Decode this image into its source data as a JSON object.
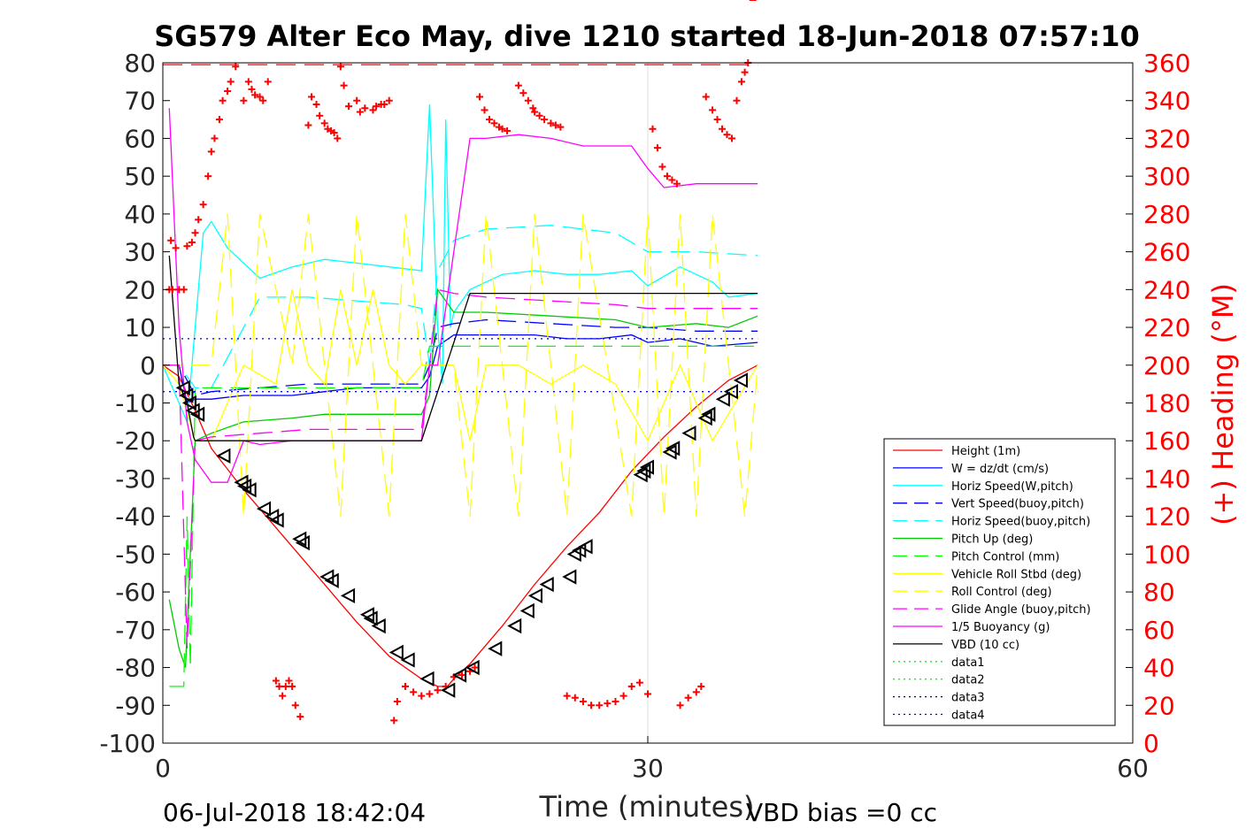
{
  "chart_data": {
    "type": "line",
    "title": "SG579 Alter Eco May, dive 1210 started 18-Jun-2018 07:57:10",
    "xlabel": "Time (minutes)",
    "ylabel": "",
    "y2label": "(+) Heading (°M)",
    "xlim": [
      0,
      60
    ],
    "ylim": [
      -100,
      80
    ],
    "y2lim": [
      0,
      360
    ],
    "xticks": [
      "0",
      "30",
      "60"
    ],
    "yticks": [
      "80",
      "70",
      "60",
      "50",
      "40",
      "30",
      "20",
      "10",
      "0",
      "-10",
      "-20",
      "-30",
      "-40",
      "-50",
      "-60",
      "-70",
      "-80",
      "-90",
      "-100"
    ],
    "y2ticks": [
      "360",
      "340",
      "320",
      "300",
      "280",
      "260",
      "240",
      "220",
      "200",
      "180",
      "160",
      "140",
      "120",
      "100",
      "80",
      "60",
      "40",
      "20",
      "0"
    ],
    "grid": "x-only",
    "legend_position": "lower-right",
    "colors": {
      "height": "#ff0000",
      "w": "#0000ff",
      "horiz_speed": "#00ffff",
      "pitch_up": "#00cc00",
      "roll": "#ffff00",
      "glide": "#ff00ff",
      "buoyancy": "#ff00ff",
      "vbd": "#000000",
      "heading": "#ff0000"
    },
    "series": [
      {
        "name": "Height (1m)",
        "style": "solid",
        "color": "#ff0000",
        "x": [
          0,
          1,
          2,
          3,
          5,
          8,
          10,
          12,
          14,
          16,
          16.5,
          17,
          17.6,
          18,
          19,
          21,
          23,
          25,
          27,
          29,
          31,
          33,
          35,
          36.8
        ],
        "y": [
          0,
          -3,
          -12,
          -22,
          -33,
          -48,
          -58,
          -68,
          -77,
          -83,
          -84,
          -85,
          -85,
          -83,
          -79,
          -69,
          -58,
          -48,
          -39,
          -28,
          -19,
          -11,
          -4,
          0
        ]
      },
      {
        "name": "W = dz/dt (cm/s)",
        "style": "solid",
        "color": "#0000ff",
        "x": [
          0,
          1,
          1.5,
          2,
          3,
          5,
          8,
          10,
          12,
          14,
          16,
          16.5,
          17,
          18,
          19,
          21,
          23,
          25,
          27,
          29,
          30,
          32,
          34,
          36.8
        ],
        "y": [
          0,
          0,
          -10,
          -9,
          -9,
          -8,
          -8,
          -7,
          -6,
          -6,
          -6,
          -3,
          5,
          8,
          8,
          8,
          8,
          7,
          7,
          8,
          6,
          7,
          5,
          6
        ]
      },
      {
        "name": "Horiz Speed(W,pitch)",
        "style": "solid",
        "color": "#00ffff",
        "x": [
          0,
          1,
          1.5,
          2,
          2.5,
          3,
          4,
          6,
          8,
          10,
          12,
          14,
          16,
          16.5,
          17,
          17.3,
          17.5,
          17.8,
          18,
          19,
          21,
          23,
          25,
          27,
          29,
          30,
          32,
          34,
          35,
          36.8
        ],
        "y": [
          0,
          -10,
          -15,
          10,
          35,
          38,
          31,
          23,
          26,
          28,
          27,
          26,
          25,
          69,
          10,
          -5,
          65,
          10,
          14,
          20,
          24,
          25,
          24,
          24,
          25,
          21,
          26,
          22,
          18,
          19
        ]
      },
      {
        "name": "Vert Speed(buoy,pitch)",
        "style": "dashed",
        "color": "#0000ff",
        "x": [
          0,
          1,
          2,
          3,
          6,
          9,
          12,
          15,
          16,
          16.5,
          17,
          18,
          20,
          24,
          28,
          30,
          33,
          36.8
        ],
        "y": [
          0,
          0,
          -8,
          -7,
          -6,
          -5,
          -5,
          -5,
          -5,
          0,
          10,
          11,
          12,
          11,
          10,
          10,
          9,
          9
        ]
      },
      {
        "name": "Horiz Speed(buoy,pitch)",
        "style": "dashed",
        "color": "#00ffff",
        "x": [
          0,
          1,
          2,
          3,
          6,
          9,
          12,
          15,
          16,
          16.5,
          17,
          18,
          20,
          24,
          28,
          30,
          33,
          36.8
        ],
        "y": [
          0,
          0,
          -6,
          -6,
          18,
          18,
          17,
          16,
          15,
          0,
          25,
          33,
          36,
          37,
          35,
          30,
          30,
          29
        ]
      },
      {
        "name": "Pitch Up (deg)",
        "style": "solid",
        "color": "#00cc00",
        "x": [
          0.4,
          1,
          1.4,
          2,
          3,
          5,
          8,
          10,
          12,
          14,
          16,
          16.5,
          17,
          18,
          20,
          24,
          28,
          30,
          33,
          35,
          36.8
        ],
        "y": [
          -62,
          -75,
          -80,
          -20,
          -18,
          -15,
          -14,
          -13,
          -13,
          -13,
          -13,
          -8,
          20,
          14,
          14,
          13,
          12,
          10,
          11,
          10,
          13
        ]
      },
      {
        "name": "Pitch Control (mm)",
        "style": "dashed",
        "color": "#00ff00",
        "x": [
          0.4,
          1.3,
          1.5,
          1.7,
          2,
          4,
          8,
          12,
          16,
          16.5,
          17,
          36.8
        ],
        "y": [
          -85,
          -85,
          -40,
          -80,
          -6,
          -6,
          -6,
          -6,
          -6,
          5,
          5,
          5
        ]
      },
      {
        "name": "Vehicle Roll Stbd (deg)",
        "style": "solid",
        "color": "#ffff00",
        "x": [
          0,
          1,
          2,
          3,
          5,
          7,
          8,
          9,
          10,
          11,
          12,
          13,
          14,
          15,
          16,
          17,
          18,
          19,
          20,
          22,
          24,
          26,
          28,
          30,
          32,
          34,
          36.8
        ],
        "y": [
          0,
          -5,
          -20,
          -20,
          0,
          -5,
          20,
          0,
          -5,
          20,
          0,
          20,
          0,
          -5,
          0,
          0,
          0,
          -20,
          0,
          0,
          -5,
          0,
          -5,
          -20,
          0,
          -20,
          0
        ]
      },
      {
        "name": "Roll Control (deg)",
        "style": "dashed",
        "color": "#ffff00",
        "x": [
          0,
          3,
          4,
          5,
          6,
          8,
          9,
          11,
          12,
          14,
          15,
          16,
          18,
          19,
          20,
          22,
          23,
          25,
          26,
          29,
          30,
          31,
          32,
          33,
          34,
          36,
          36.8
        ],
        "y": [
          0,
          0,
          40,
          -40,
          40,
          0,
          40,
          -40,
          40,
          -40,
          40,
          0,
          0,
          -40,
          40,
          -40,
          40,
          -40,
          40,
          -40,
          40,
          -40,
          40,
          -40,
          40,
          -40,
          0
        ]
      },
      {
        "name": "Glide Angle (buoy,pitch)",
        "style": "dashed",
        "color": "#ff00ff",
        "x": [
          0,
          1,
          1.5,
          2,
          3,
          6,
          9,
          12,
          16,
          16.5,
          17,
          18,
          20,
          24,
          28,
          30,
          33,
          36.8
        ],
        "y": [
          0,
          0,
          -75,
          -20,
          -19,
          -18,
          -17,
          -17,
          -17,
          0,
          20,
          19,
          18,
          17,
          16,
          15,
          15,
          15
        ]
      },
      {
        "name": "1/5 Buoyancy (g)",
        "style": "solid",
        "color": "#ff00ff",
        "x": [
          0.4,
          1,
          1.5,
          2,
          3,
          4,
          5,
          6,
          8,
          10,
          12,
          14,
          15,
          16,
          16.5,
          17,
          19,
          20,
          22,
          24,
          26,
          28,
          29,
          30,
          31,
          33,
          35,
          36.8
        ],
        "y": [
          68,
          10,
          -15,
          -25,
          -31,
          -31,
          -20,
          -21,
          -20,
          -20,
          -20,
          -20,
          -20,
          -20,
          0,
          0,
          60,
          60,
          61,
          60,
          58,
          58,
          58,
          52,
          47,
          48,
          48,
          48
        ]
      },
      {
        "name": "VBD (10 cc)",
        "style": "solid",
        "color": "#000000",
        "x": [
          0.4,
          1,
          1.5,
          1.9,
          2,
          16,
          19,
          36.8
        ],
        "y": [
          29,
          -5,
          -10,
          -19,
          -20,
          -20,
          19,
          19
        ]
      },
      {
        "name": "data1",
        "style": "dotted",
        "color": "#00ff00",
        "x": [],
        "y": []
      },
      {
        "name": "data2",
        "style": "dotted",
        "color": "#00ff00",
        "x": [],
        "y": []
      },
      {
        "name": "data3",
        "style": "dotted",
        "color": "#0000aa",
        "x": [
          0,
          36.8
        ],
        "y": [
          7,
          7
        ]
      },
      {
        "name": "data4",
        "style": "dotted",
        "color": "#0000ff",
        "x": [
          0,
          36.8
        ],
        "y": [
          -7,
          -7
        ]
      }
    ],
    "heading_dashed_line": {
      "y2": 359
    },
    "heading_points": {
      "x": [
        0.4,
        0.5,
        0.6,
        0.8,
        1,
        1.3,
        1.5,
        1.8,
        2,
        2.2,
        2.5,
        2.8,
        3,
        3.2,
        3.5,
        3.7,
        4,
        4.2,
        4.5,
        5,
        5.3,
        5.5,
        5.7,
        6,
        6.2,
        6.5,
        7,
        7.2,
        7.4,
        7.6,
        7.8,
        8,
        8.2,
        8.5,
        9,
        9.2,
        9.5,
        9.7,
        10,
        10.2,
        10.4,
        10.6,
        10.8,
        11,
        11.2,
        11.5,
        12,
        12.2,
        12.5,
        13,
        13.2,
        13.5,
        13.7,
        14,
        14.3,
        14.5,
        15,
        15.5,
        16,
        16.5,
        17,
        17.5,
        18,
        18.5,
        19,
        19.3,
        19.6,
        19.9,
        20.2,
        20.5,
        20.8,
        21,
        21.3,
        22,
        22.3,
        22.6,
        22.9,
        23,
        23.3,
        23.6,
        24,
        24.3,
        24.6,
        25,
        25.5,
        26,
        26.5,
        27,
        27.5,
        28,
        28.5,
        29,
        29.5,
        30,
        30.3,
        30.6,
        30.9,
        31.2,
        31.5,
        31.8,
        32,
        32.5,
        33,
        33.3,
        33.6,
        34,
        34.3,
        34.6,
        34.9,
        35.2,
        35.5,
        35.8,
        36,
        36.2,
        36.5
      ],
      "y2": [
        240,
        266,
        240,
        262,
        240,
        240,
        263,
        265,
        270,
        277,
        285,
        300,
        313,
        320,
        330,
        340,
        345,
        350,
        358,
        340,
        350,
        346,
        343,
        342,
        340,
        350,
        33,
        30,
        25,
        30,
        33,
        30,
        20,
        14,
        327,
        342,
        338,
        332,
        328,
        325,
        324,
        323,
        320,
        358,
        348,
        337,
        340,
        334,
        336,
        335,
        337,
        338,
        338,
        340,
        12,
        22,
        30,
        27,
        25,
        26,
        28,
        30,
        35,
        36,
        38,
        40,
        342,
        335,
        330,
        328,
        326,
        325,
        324,
        348,
        344,
        340,
        336,
        334,
        332,
        330,
        328,
        327,
        326,
        25,
        24,
        22,
        20,
        20,
        21,
        22,
        25,
        30,
        32,
        26,
        325,
        315,
        305,
        300,
        298,
        296,
        20,
        24,
        27,
        30,
        342,
        335,
        330,
        325,
        322,
        320,
        340,
        350,
        355,
        360
      ]
    },
    "vbd_markers": {
      "x": [
        1.3,
        1.5,
        1.7,
        1.9,
        2.2,
        3.8,
        4.9,
        5.1,
        5.4,
        6.3,
        6.8,
        7.1,
        8.5,
        8.7,
        10.2,
        10.5,
        11.5,
        12.7,
        12.9,
        13.4,
        14.5,
        15.2,
        16.4,
        17.7,
        18.4,
        19.2,
        20.6,
        21.8,
        22.6,
        23.1,
        23.8,
        25.2,
        25.5,
        25.8,
        26.2,
        29.6,
        29.8,
        30,
        31.4,
        31.6,
        32.6,
        33.6,
        33.8,
        34.7,
        35.2,
        35.8
      ],
      "y": [
        -6,
        -8,
        -10,
        -12,
        -13,
        -24,
        -31,
        -32,
        -33,
        -38,
        -40,
        -41,
        -46,
        -47,
        -56,
        -57,
        -61,
        -66,
        -67,
        -69,
        -76,
        -78,
        -83,
        -86,
        -82,
        -80,
        -75,
        -69,
        -65,
        -61,
        -58,
        -56,
        -50,
        -49,
        -48,
        -29,
        -28,
        -27,
        -23,
        -22,
        -18,
        -14,
        -13,
        -9,
        -7,
        -4
      ]
    },
    "footer_left": "06-Jul-2018 18:42:04",
    "footer_right": "VBD bias =0 cc"
  }
}
